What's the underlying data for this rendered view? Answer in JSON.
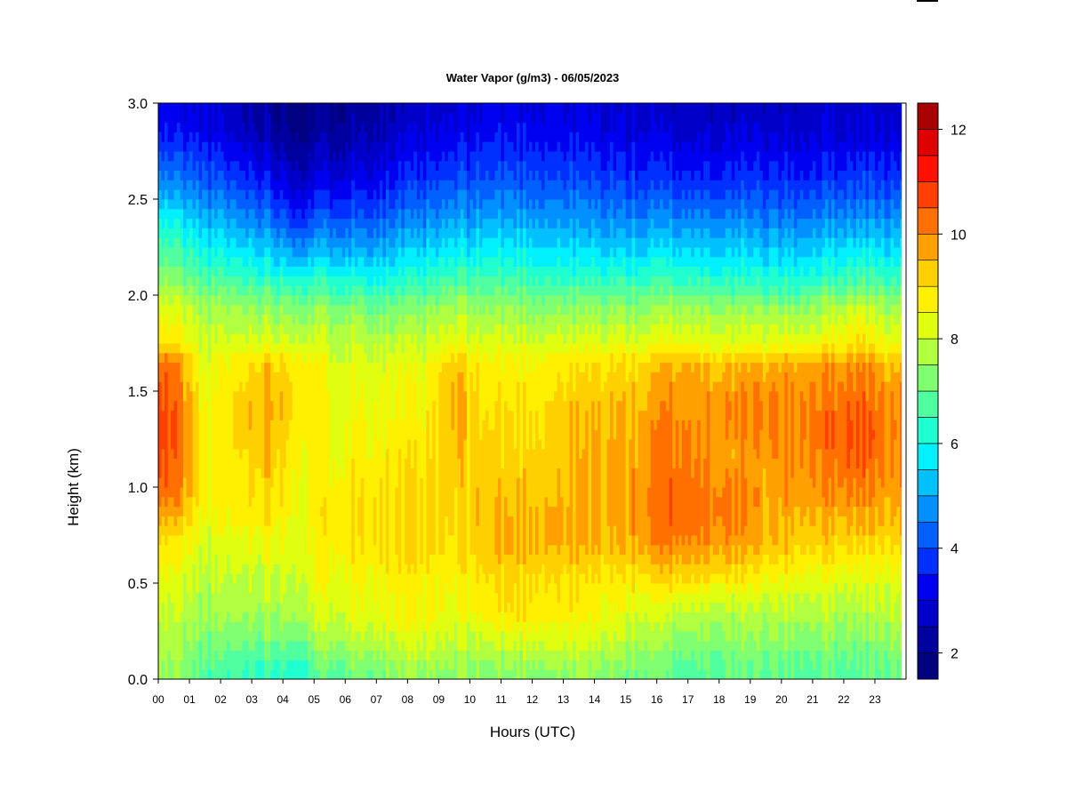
{
  "chart_data": {
    "type": "heatmap",
    "title": "Water Vapor (g/m3) - 06/05/2023",
    "xlabel": "Hours (UTC)",
    "ylabel": "Height (km)",
    "x_ticks": [
      "00",
      "01",
      "02",
      "03",
      "04",
      "05",
      "06",
      "07",
      "08",
      "09",
      "10",
      "11",
      "12",
      "13",
      "14",
      "15",
      "16",
      "17",
      "18",
      "19",
      "20",
      "21",
      "22",
      "23"
    ],
    "y_ticks": [
      "0.0",
      "0.5",
      "1.0",
      "1.5",
      "2.0",
      "2.5",
      "3.0"
    ],
    "xlim": [
      0,
      24
    ],
    "ylim": [
      0.0,
      3.0
    ],
    "color_range": [
      1.5,
      12.5
    ],
    "colorbar_ticks": [
      "2",
      "4",
      "6",
      "8",
      "10",
      "12"
    ],
    "colorbar_levels": [
      1.5,
      2,
      2.5,
      3,
      3.5,
      4,
      4.5,
      5,
      5.5,
      6,
      6.5,
      7,
      7.5,
      8,
      8.5,
      9,
      9.5,
      10,
      10.5,
      11,
      11.5,
      12,
      12.5
    ],
    "colorbar_colors": [
      "#000080",
      "#00009F",
      "#0000C8",
      "#0000F0",
      "#0030FF",
      "#0060FF",
      "#0090FF",
      "#00C0FF",
      "#00F0FF",
      "#20FFD0",
      "#50FFA0",
      "#80FF70",
      "#B0FF40",
      "#E0FF10",
      "#FFF000",
      "#FFD000",
      "#FFA000",
      "#FF7000",
      "#FF4000",
      "#FF1000",
      "#DF0000",
      "#A80000"
    ],
    "heights_km": [
      0.05,
      0.15,
      0.25,
      0.35,
      0.45,
      0.55,
      0.65,
      0.75,
      0.85,
      0.95,
      1.05,
      1.15,
      1.25,
      1.35,
      1.45,
      1.55,
      1.65,
      1.75,
      1.85,
      1.95,
      2.05,
      2.15,
      2.25,
      2.35,
      2.45,
      2.55,
      2.65,
      2.75,
      2.85,
      2.95
    ],
    "hours_utc": [
      0.5,
      1.5,
      2.5,
      3.5,
      4.5,
      5.5,
      6.5,
      7.5,
      8.5,
      9.5,
      10.5,
      11.5,
      12.5,
      13.5,
      14.5,
      15.5,
      16.5,
      17.5,
      18.5,
      19.5,
      20.5,
      21.5,
      22.5,
      23.5
    ],
    "profiles": [
      {
        "hour": 0.5,
        "values": [
          7.5,
          7.6,
          7.8,
          8.0,
          8.1,
          8.4,
          8.7,
          9.0,
          9.6,
          10.2,
          10.4,
          10.5,
          10.6,
          10.6,
          10.5,
          10.4,
          10.2,
          8.8,
          8.5,
          8.2,
          7.5,
          7.0,
          6.6,
          6.1,
          5.5,
          4.8,
          4.3,
          3.9,
          3.4,
          3.2
        ]
      },
      {
        "hour": 1.5,
        "values": [
          6.8,
          7.0,
          7.3,
          7.6,
          7.7,
          7.8,
          8.0,
          8.2,
          8.4,
          8.6,
          8.6,
          8.5,
          8.5,
          8.5,
          8.4,
          8.3,
          8.2,
          8.0,
          7.8,
          7.5,
          6.9,
          6.4,
          5.9,
          5.4,
          4.9,
          4.4,
          4.0,
          3.6,
          3.2,
          3.0
        ]
      },
      {
        "hour": 2.5,
        "values": [
          6.5,
          6.9,
          7.3,
          7.6,
          7.8,
          8.0,
          8.2,
          8.4,
          8.6,
          8.8,
          8.8,
          8.9,
          9.0,
          9.0,
          9.0,
          8.9,
          8.7,
          8.2,
          7.8,
          7.4,
          6.8,
          6.2,
          5.6,
          5.1,
          4.6,
          4.1,
          3.6,
          3.2,
          2.8,
          2.6
        ]
      },
      {
        "hour": 3.5,
        "values": [
          6.6,
          7.0,
          7.4,
          7.7,
          7.9,
          8.1,
          8.4,
          8.7,
          9.0,
          9.2,
          9.3,
          9.5,
          9.7,
          9.8,
          9.8,
          9.6,
          9.3,
          8.4,
          7.9,
          7.5,
          6.6,
          6.0,
          5.4,
          4.8,
          4.3,
          3.8,
          3.3,
          2.9,
          2.5,
          2.3
        ]
      },
      {
        "hour": 4.5,
        "values": [
          6.4,
          6.9,
          7.4,
          7.8,
          8.0,
          8.2,
          8.3,
          8.4,
          8.5,
          8.6,
          8.6,
          8.7,
          8.8,
          8.9,
          9.0,
          9.0,
          8.8,
          8.2,
          7.7,
          7.3,
          6.5,
          5.6,
          4.8,
          4.1,
          3.5,
          3.0,
          2.6,
          2.3,
          2.0,
          1.9
        ]
      },
      {
        "hour": 5.5,
        "values": [
          7.0,
          7.5,
          7.9,
          8.2,
          8.4,
          8.6,
          8.7,
          8.8,
          8.9,
          8.8,
          8.7,
          8.6,
          8.6,
          8.5,
          8.5,
          8.4,
          8.3,
          8.0,
          7.7,
          7.3,
          6.5,
          5.8,
          5.1,
          4.5,
          3.9,
          3.4,
          2.9,
          2.6,
          2.3,
          2.1
        ]
      },
      {
        "hour": 6.5,
        "values": [
          7.2,
          7.7,
          8.1,
          8.4,
          8.5,
          8.7,
          8.9,
          9.0,
          9.1,
          9.0,
          8.9,
          8.8,
          8.7,
          8.6,
          8.5,
          8.4,
          8.3,
          8.0,
          7.7,
          7.2,
          6.4,
          5.7,
          5.0,
          4.5,
          3.9,
          3.5,
          3.1,
          2.8,
          2.5,
          2.3
        ]
      },
      {
        "hour": 7.5,
        "values": [
          7.3,
          7.8,
          8.2,
          8.5,
          8.6,
          8.7,
          9.0,
          9.1,
          9.1,
          9.0,
          8.9,
          8.8,
          8.7,
          8.6,
          8.5,
          8.4,
          8.2,
          7.9,
          7.5,
          7.0,
          6.3,
          5.7,
          5.1,
          4.6,
          4.1,
          3.7,
          3.3,
          3.0,
          2.7,
          2.5
        ]
      },
      {
        "hour": 8.5,
        "values": [
          7.4,
          7.9,
          8.3,
          8.6,
          8.6,
          8.7,
          9.0,
          9.1,
          9.1,
          9.0,
          8.9,
          8.8,
          8.7,
          8.6,
          8.5,
          8.4,
          8.2,
          7.9,
          7.6,
          7.1,
          6.5,
          5.9,
          5.3,
          4.8,
          4.3,
          3.9,
          3.5,
          3.2,
          2.9,
          2.7
        ]
      },
      {
        "hour": 9.5,
        "values": [
          7.3,
          7.7,
          8.0,
          8.3,
          8.4,
          8.6,
          8.8,
          8.9,
          9.0,
          9.1,
          9.2,
          9.3,
          9.4,
          9.5,
          9.6,
          9.5,
          9.2,
          8.4,
          8.0,
          7.5,
          6.8,
          6.2,
          5.6,
          5.1,
          4.6,
          4.2,
          3.8,
          3.4,
          3.1,
          2.9
        ]
      },
      {
        "hour": 10.5,
        "values": [
          7.3,
          7.8,
          8.2,
          8.7,
          8.8,
          9.0,
          9.3,
          9.4,
          9.4,
          9.4,
          9.3,
          9.2,
          9.1,
          9.0,
          8.9,
          8.8,
          8.6,
          8.2,
          7.8,
          7.4,
          6.8,
          6.2,
          5.7,
          5.2,
          4.7,
          4.3,
          3.9,
          3.6,
          3.3,
          3.1
        ]
      },
      {
        "hour": 11.5,
        "values": [
          7.4,
          7.9,
          8.4,
          9.0,
          9.1,
          9.2,
          9.5,
          9.6,
          9.5,
          9.4,
          9.3,
          9.2,
          9.1,
          9.0,
          8.9,
          8.8,
          8.6,
          8.2,
          7.8,
          7.4,
          6.8,
          6.2,
          5.7,
          5.2,
          4.8,
          4.4,
          4.0,
          3.7,
          3.4,
          3.2
        ]
      },
      {
        "hour": 12.5,
        "values": [
          7.5,
          8.0,
          8.4,
          8.9,
          9.0,
          9.1,
          9.5,
          9.6,
          9.6,
          9.5,
          9.4,
          9.3,
          9.2,
          9.1,
          9.0,
          8.9,
          8.7,
          8.2,
          7.8,
          7.3,
          6.7,
          6.1,
          5.6,
          5.1,
          4.7,
          4.3,
          3.9,
          3.6,
          3.3,
          3.1
        ]
      },
      {
        "hour": 13.5,
        "values": [
          7.5,
          8.0,
          8.3,
          8.7,
          8.8,
          9.0,
          9.4,
          9.6,
          9.6,
          9.5,
          9.5,
          9.5,
          9.4,
          9.4,
          9.3,
          9.1,
          8.9,
          8.3,
          7.8,
          7.3,
          6.6,
          6.0,
          5.5,
          5.0,
          4.6,
          4.2,
          3.8,
          3.5,
          3.2,
          3.0
        ]
      },
      {
        "hour": 14.5,
        "values": [
          7.3,
          7.8,
          8.2,
          8.5,
          8.7,
          8.9,
          9.3,
          9.5,
          9.6,
          9.6,
          9.6,
          9.6,
          9.6,
          9.5,
          9.4,
          9.2,
          9.0,
          8.3,
          7.8,
          7.3,
          6.6,
          6.0,
          5.4,
          4.9,
          4.5,
          4.1,
          3.7,
          3.4,
          3.1,
          2.9
        ]
      },
      {
        "hour": 15.5,
        "values": [
          7.1,
          7.5,
          7.9,
          8.2,
          8.6,
          9.0,
          9.5,
          9.8,
          9.9,
          9.9,
          9.8,
          9.7,
          9.7,
          9.6,
          9.5,
          9.3,
          9.0,
          8.3,
          7.8,
          7.3,
          6.6,
          6.0,
          5.4,
          4.9,
          4.4,
          4.0,
          3.6,
          3.3,
          3.0,
          2.8
        ]
      },
      {
        "hour": 16.5,
        "values": [
          6.9,
          7.2,
          7.6,
          8.0,
          8.6,
          9.3,
          9.8,
          10.2,
          10.4,
          10.4,
          10.3,
          10.2,
          10.2,
          10.1,
          10.0,
          9.8,
          9.5,
          8.5,
          8.0,
          7.5,
          6.7,
          6.1,
          5.5,
          4.9,
          4.4,
          3.9,
          3.5,
          3.2,
          2.9,
          2.7
        ]
      },
      {
        "hour": 17.5,
        "values": [
          6.9,
          7.2,
          7.5,
          7.9,
          8.5,
          9.2,
          9.7,
          10.0,
          10.3,
          10.3,
          10.1,
          9.9,
          9.9,
          9.9,
          9.9,
          9.7,
          9.4,
          8.4,
          8.0,
          7.5,
          6.6,
          6.0,
          5.4,
          4.9,
          4.4,
          3.9,
          3.5,
          3.2,
          2.9,
          2.7
        ]
      },
      {
        "hour": 18.5,
        "values": [
          6.9,
          7.2,
          7.5,
          7.8,
          8.3,
          9.0,
          9.5,
          9.9,
          10.1,
          10.1,
          9.9,
          9.7,
          9.8,
          9.9,
          9.9,
          9.7,
          9.4,
          8.3,
          7.9,
          7.4,
          6.5,
          5.9,
          5.4,
          4.9,
          4.4,
          3.9,
          3.5,
          3.2,
          2.9,
          2.7
        ]
      },
      {
        "hour": 19.5,
        "values": [
          6.9,
          7.2,
          7.5,
          7.8,
          8.2,
          8.7,
          9.2,
          9.5,
          9.6,
          9.7,
          9.7,
          9.8,
          9.9,
          10.0,
          10.0,
          9.8,
          9.5,
          8.3,
          7.9,
          7.3,
          6.4,
          5.8,
          5.3,
          4.8,
          4.3,
          3.9,
          3.5,
          3.2,
          2.9,
          2.7
        ]
      },
      {
        "hour": 20.5,
        "values": [
          6.9,
          7.2,
          7.5,
          7.8,
          8.2,
          8.6,
          9.1,
          9.4,
          9.6,
          9.8,
          9.9,
          10.0,
          10.1,
          10.1,
          10.1,
          9.9,
          9.6,
          8.4,
          7.9,
          7.3,
          6.4,
          5.8,
          5.3,
          4.8,
          4.3,
          3.9,
          3.5,
          3.2,
          2.9,
          2.7
        ]
      },
      {
        "hour": 21.5,
        "values": [
          6.9,
          7.2,
          7.5,
          7.8,
          8.1,
          8.5,
          9.0,
          9.3,
          9.6,
          9.9,
          10.1,
          10.2,
          10.3,
          10.3,
          10.2,
          10.0,
          9.7,
          8.6,
          8.1,
          7.6,
          6.7,
          6.0,
          5.4,
          4.9,
          4.4,
          4.0,
          3.6,
          3.3,
          3.0,
          2.8
        ]
      },
      {
        "hour": 22.5,
        "values": [
          6.8,
          7.1,
          7.4,
          7.7,
          8.0,
          8.4,
          8.9,
          9.3,
          9.7,
          10.0,
          10.3,
          10.5,
          10.6,
          10.5,
          10.4,
          10.2,
          9.9,
          9.0,
          8.5,
          8.0,
          7.0,
          6.3,
          5.7,
          5.1,
          4.6,
          4.1,
          3.7,
          3.3,
          3.0,
          2.8
        ]
      },
      {
        "hour": 23.5,
        "values": [
          7.0,
          7.3,
          7.6,
          7.9,
          8.1,
          8.4,
          8.8,
          9.2,
          9.5,
          9.7,
          9.8,
          9.9,
          10.0,
          10.0,
          9.9,
          9.7,
          9.4,
          8.4,
          8.0,
          7.5,
          6.7,
          6.1,
          5.5,
          5.0,
          4.5,
          4.0,
          3.6,
          3.3,
          3.0,
          2.8
        ]
      }
    ],
    "data_end_hour": 23.85
  }
}
